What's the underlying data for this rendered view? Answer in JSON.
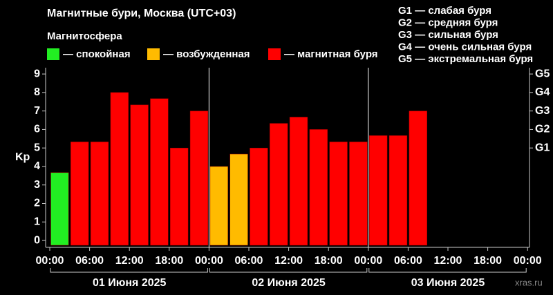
{
  "chart_data": {
    "type": "bar",
    "title": "Магнитные бури, Москва (UTC+03)",
    "subtitle": "Магнитосфера",
    "legend": [
      {
        "label": "— спокойная",
        "color": "#22ee22"
      },
      {
        "label": "— возбужденная",
        "color": "#ffbb00"
      },
      {
        "label": "— магнитная буря",
        "color": "#ff0000"
      }
    ],
    "storm_scale": [
      "G1 — слабая буря",
      "G2 — средняя буря",
      "G3 — сильная буря",
      "G4 — очень сильная буря",
      "G5 — экстремальная буря"
    ],
    "y_label": "Kp",
    "values": [
      3.67,
      5.33,
      5.33,
      8,
      7.33,
      7.67,
      5,
      7,
      4,
      4.67,
      5,
      6.33,
      6.67,
      6,
      5.33,
      5.33,
      5.67,
      5.67,
      7,
      null,
      null,
      null,
      null,
      null
    ],
    "bar_colors": [
      "#22ee22",
      "#ff0000",
      "#ff0000",
      "#ff0000",
      "#ff0000",
      "#ff0000",
      "#ff0000",
      "#ff0000",
      "#ffbb00",
      "#ffbb00",
      "#ff0000",
      "#ff0000",
      "#ff0000",
      "#ff0000",
      "#ff0000",
      "#ff0000",
      "#ff0000",
      "#ff0000",
      "#ff0000",
      null,
      null,
      null,
      null,
      null
    ],
    "x_labels": [
      "00:00",
      "06:00",
      "12:00",
      "18:00",
      "00:00",
      "06:00",
      "12:00",
      "18:00",
      "00:00",
      "06:00",
      "12:00",
      "18:00",
      "00:00"
    ],
    "days": [
      "01 Июня 2025",
      "02 Июня 2025",
      "03 Июня 2025"
    ],
    "ylim": [
      -0.26,
      9.34
    ],
    "yticks": [
      0,
      1,
      2,
      3,
      4,
      5,
      6,
      7,
      8,
      9
    ],
    "y2lim": [
      -0.26,
      9.34
    ],
    "y2ticks": [
      {
        "value": 5,
        "label": "G1"
      },
      {
        "value": 6,
        "label": "G2"
      },
      {
        "value": 7,
        "label": "G3"
      },
      {
        "value": 8,
        "label": "G4"
      },
      {
        "value": 9,
        "label": "G5"
      }
    ],
    "source": "xras.ru"
  }
}
